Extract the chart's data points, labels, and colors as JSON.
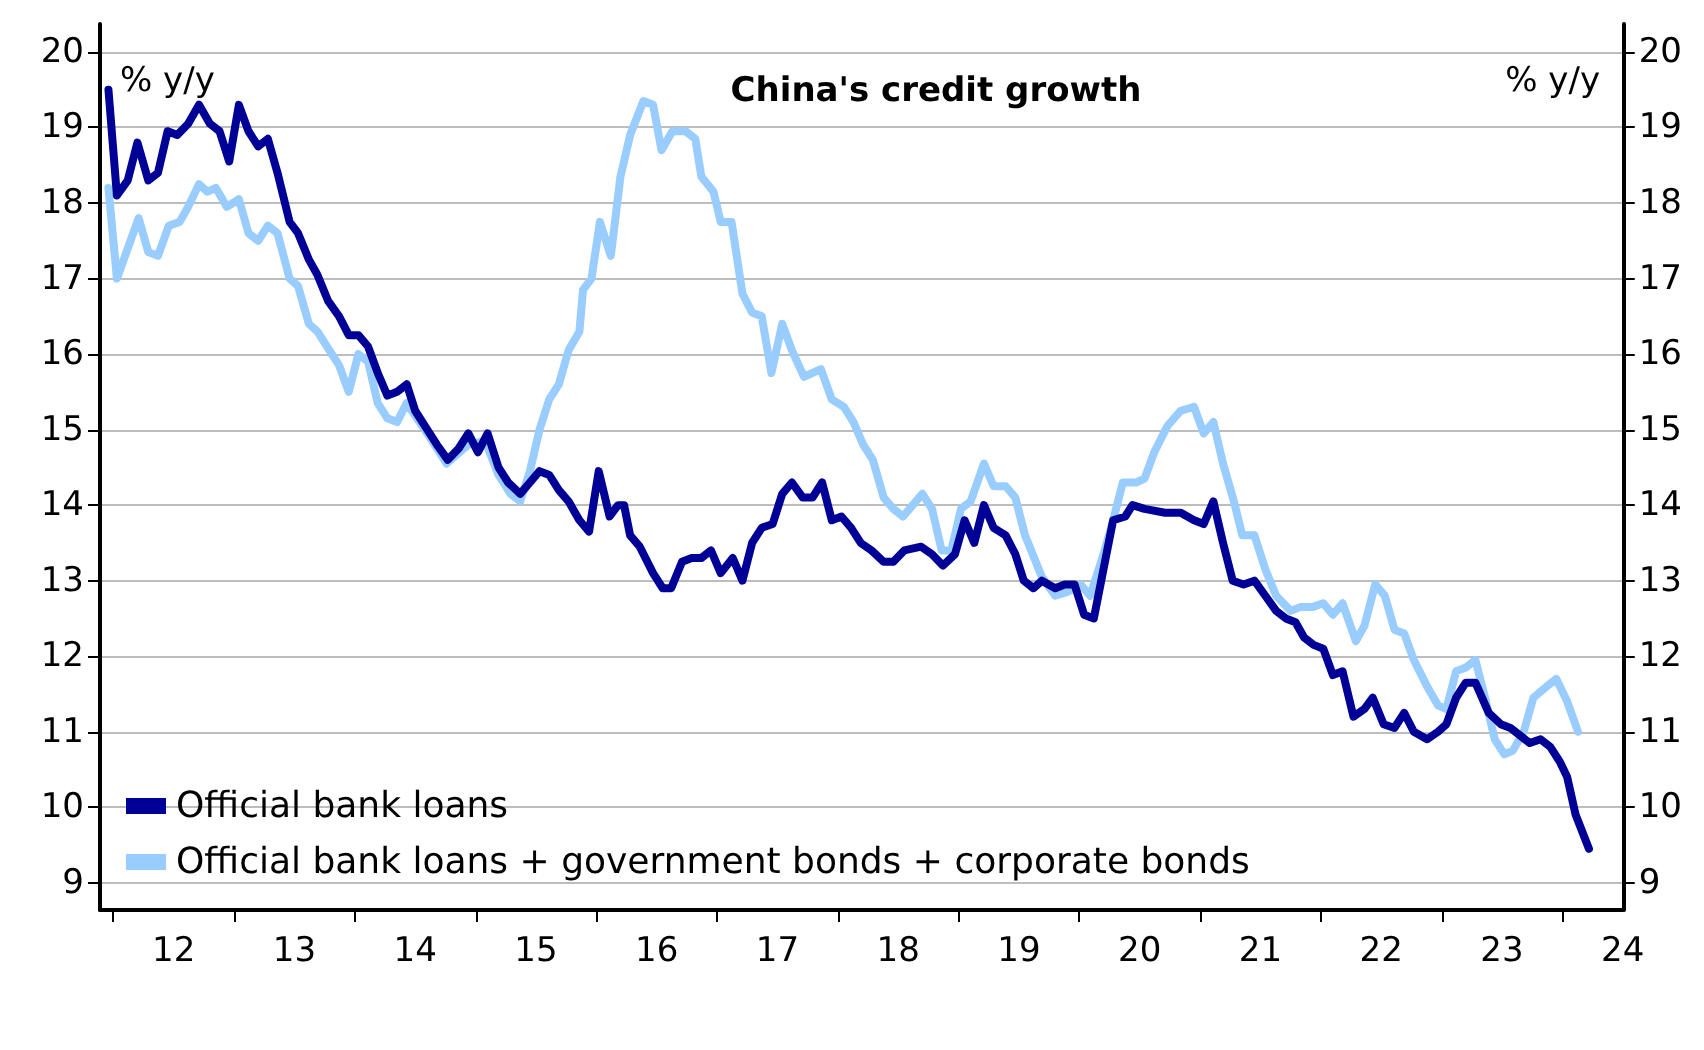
{
  "chart_data": {
    "type": "line",
    "title": "China's credit growth",
    "ylabel": "% y/y",
    "y2label": "% y/y",
    "xlim": [
      11.39,
      24.0
    ],
    "xticks": [
      12,
      13,
      14,
      15,
      16,
      17,
      18,
      19,
      20,
      21,
      22,
      23,
      24,
      {
        "value": 11.5,
        "label": null
      },
      {
        "value": 12.5,
        "label": null
      },
      {
        "value": 13.5,
        "label": null
      },
      {
        "value": 14.5,
        "label": null
      },
      {
        "value": 15.5,
        "label": null
      },
      {
        "value": 16.5,
        "label": null
      },
      {
        "value": 17.5,
        "label": null
      },
      {
        "value": 18.5,
        "label": null
      },
      {
        "value": 19.5,
        "label": null
      },
      {
        "value": 20.5,
        "label": null
      },
      {
        "value": 21.5,
        "label": null
      },
      {
        "value": 22.5,
        "label": null
      },
      {
        "value": 23.5,
        "label": null
      }
    ],
    "ylim": [
      8.64,
      20.37
    ],
    "yticks": [
      9,
      10,
      11,
      12,
      13,
      14,
      15,
      16,
      17,
      18,
      19,
      20
    ],
    "y2lim": [
      8.64,
      20.37
    ],
    "y2ticks": [
      9,
      10,
      11,
      12,
      13,
      14,
      15,
      16,
      17,
      18,
      19,
      20
    ],
    "grid": "y",
    "legend": "bottom left",
    "marker": "none",
    "line_style": "solid",
    "series": [
      {
        "name": "Official bank loans",
        "color": "#000096",
        "x": [
          11.46,
          11.53,
          11.62,
          11.7,
          11.79,
          11.87,
          11.95,
          12.03,
          12.12,
          12.21,
          12.3,
          12.38,
          12.46,
          12.54,
          12.62,
          12.7,
          12.78,
          12.86,
          12.96,
          13.03,
          13.12,
          13.19,
          13.28,
          13.37,
          13.45,
          13.53,
          13.61,
          13.69,
          13.77,
          13.85,
          13.93,
          14.0,
          14.1,
          14.18,
          14.27,
          14.36,
          14.44,
          14.52,
          14.6,
          14.69,
          14.77,
          14.87,
          14.95,
          15.03,
          15.11,
          15.19,
          15.27,
          15.36,
          15.44,
          15.52,
          15.61,
          15.68,
          15.73,
          15.78,
          15.86,
          15.97,
          16.05,
          16.12,
          16.21,
          16.29,
          16.37,
          16.45,
          16.53,
          16.63,
          16.71,
          16.79,
          16.87,
          16.96,
          17.04,
          17.12,
          17.21,
          17.29,
          17.37,
          17.45,
          17.53,
          17.61,
          17.69,
          17.78,
          17.88,
          17.96,
          18.05,
          18.19,
          18.28,
          18.37,
          18.47,
          18.55,
          18.63,
          18.71,
          18.79,
          18.89,
          18.97,
          19.04,
          19.12,
          19.19,
          19.3,
          19.38,
          19.46,
          19.54,
          19.62,
          19.7,
          19.78,
          19.88,
          19.94,
          20.04,
          20.21,
          20.34,
          20.45,
          20.53,
          20.61,
          20.69,
          20.77,
          20.86,
          20.95,
          21.04,
          21.13,
          21.21,
          21.29,
          21.36,
          21.44,
          21.52,
          21.6,
          21.68,
          21.77,
          21.86,
          21.93,
          22.02,
          22.11,
          22.19,
          22.27,
          22.38,
          22.47,
          22.54,
          22.62,
          22.7,
          22.78,
          22.89,
          22.99,
          23.07,
          23.15,
          23.23,
          23.32,
          23.4,
          23.48,
          23.54,
          23.61,
          23.72
        ],
        "values": [
          19.5,
          18.1,
          18.3,
          18.8,
          18.3,
          18.4,
          18.95,
          18.9,
          19.05,
          19.3,
          19.05,
          18.95,
          18.55,
          19.3,
          18.95,
          18.75,
          18.85,
          18.4,
          17.75,
          17.6,
          17.25,
          17.05,
          16.7,
          16.5,
          16.25,
          16.25,
          16.1,
          15.75,
          15.45,
          15.5,
          15.6,
          15.25,
          15.0,
          14.8,
          14.6,
          14.75,
          14.95,
          14.7,
          14.95,
          14.5,
          14.3,
          14.15,
          14.3,
          14.45,
          14.4,
          14.2,
          14.05,
          13.8,
          13.65,
          14.45,
          13.85,
          14.0,
          14.0,
          13.6,
          13.45,
          13.1,
          12.9,
          12.9,
          13.25,
          13.3,
          13.3,
          13.4,
          13.1,
          13.3,
          13.0,
          13.5,
          13.7,
          13.75,
          14.15,
          14.3,
          14.1,
          14.1,
          14.3,
          13.8,
          13.85,
          13.7,
          13.5,
          13.4,
          13.25,
          13.25,
          13.4,
          13.45,
          13.35,
          13.2,
          13.35,
          13.8,
          13.5,
          14.0,
          13.7,
          13.6,
          13.35,
          13.0,
          12.9,
          13.0,
          12.9,
          12.95,
          12.95,
          12.55,
          12.5,
          13.15,
          13.8,
          13.85,
          14.0,
          13.95,
          13.9,
          13.9,
          13.8,
          13.75,
          14.05,
          13.5,
          13.0,
          12.95,
          13.0,
          12.8,
          12.6,
          12.5,
          12.45,
          12.25,
          12.15,
          12.1,
          11.75,
          11.8,
          11.2,
          11.3,
          11.45,
          11.1,
          11.05,
          11.25,
          11.0,
          10.9,
          11.0,
          11.1,
          11.45,
          11.65,
          11.65,
          11.25,
          11.1,
          11.05,
          10.95,
          10.85,
          10.9,
          10.8,
          10.6,
          10.4,
          9.9,
          9.45
        ]
      },
      {
        "name": "Official bank loans + government bonds + corporate bonds",
        "color": "#99ccff",
        "x": [
          11.46,
          11.53,
          11.62,
          11.71,
          11.79,
          11.87,
          11.96,
          12.05,
          12.12,
          12.21,
          12.28,
          12.35,
          12.44,
          12.54,
          12.62,
          12.7,
          12.78,
          12.86,
          12.96,
          13.03,
          13.12,
          13.19,
          13.29,
          13.37,
          13.45,
          13.53,
          13.61,
          13.69,
          13.77,
          13.85,
          13.93,
          14.1,
          14.26,
          14.44,
          14.58,
          14.69,
          14.79,
          14.87,
          14.95,
          15.03,
          15.11,
          15.19,
          15.27,
          15.36,
          15.39,
          15.46,
          15.53,
          15.62,
          15.7,
          15.78,
          15.89,
          15.97,
          16.04,
          16.13,
          16.24,
          16.32,
          16.37,
          16.47,
          16.53,
          16.62,
          16.71,
          16.79,
          16.87,
          16.95,
          17.04,
          17.12,
          17.22,
          17.36,
          17.45,
          17.55,
          17.63,
          17.71,
          17.79,
          17.88,
          17.96,
          18.04,
          18.12,
          18.2,
          18.28,
          18.36,
          18.44,
          18.52,
          18.6,
          18.71,
          18.79,
          18.89,
          18.97,
          19.05,
          19.19,
          19.3,
          19.4,
          19.51,
          19.59,
          19.7,
          19.78,
          19.86,
          19.97,
          20.04,
          20.12,
          20.23,
          20.34,
          20.45,
          20.53,
          20.61,
          20.69,
          20.78,
          20.85,
          20.95,
          21.04,
          21.13,
          21.25,
          21.33,
          21.43,
          21.52,
          21.6,
          21.68,
          21.79,
          21.86,
          21.95,
          22.03,
          22.11,
          22.19,
          22.27,
          22.38,
          22.47,
          22.54,
          22.62,
          22.7,
          22.78,
          22.86,
          22.94,
          23.02,
          23.09,
          23.18,
          23.26,
          23.37,
          23.45,
          23.54,
          23.63
        ],
        "values": [
          18.2,
          17.0,
          17.4,
          17.8,
          17.35,
          17.3,
          17.7,
          17.75,
          17.95,
          18.25,
          18.15,
          18.2,
          17.95,
          18.05,
          17.6,
          17.5,
          17.7,
          17.6,
          17.0,
          16.9,
          16.4,
          16.3,
          16.05,
          15.85,
          15.5,
          16.0,
          15.9,
          15.35,
          15.15,
          15.1,
          15.35,
          14.95,
          14.55,
          14.8,
          14.85,
          14.4,
          14.15,
          14.05,
          14.45,
          15.0,
          15.4,
          15.6,
          16.05,
          16.3,
          16.85,
          17.0,
          17.75,
          17.3,
          18.35,
          18.9,
          19.35,
          19.3,
          18.7,
          18.95,
          18.95,
          18.85,
          18.35,
          18.15,
          17.75,
          17.75,
          16.8,
          16.55,
          16.5,
          15.75,
          16.4,
          16.05,
          15.7,
          15.8,
          15.4,
          15.3,
          15.1,
          14.8,
          14.6,
          14.1,
          13.95,
          13.85,
          14.0,
          14.15,
          13.95,
          13.4,
          13.4,
          13.95,
          14.05,
          14.55,
          14.25,
          14.25,
          14.1,
          13.6,
          13.05,
          12.8,
          12.85,
          12.95,
          12.8,
          13.35,
          13.8,
          14.3,
          14.3,
          14.35,
          14.7,
          15.05,
          15.25,
          15.3,
          14.95,
          15.1,
          14.55,
          14.05,
          13.6,
          13.6,
          13.15,
          12.8,
          12.6,
          12.65,
          12.65,
          12.7,
          12.55,
          12.7,
          12.2,
          12.4,
          12.95,
          12.8,
          12.35,
          12.3,
          11.95,
          11.6,
          11.35,
          11.3,
          11.8,
          11.85,
          11.95,
          11.45,
          10.9,
          10.7,
          10.75,
          11.0,
          11.45,
          11.6,
          11.7,
          11.4,
          11.0
        ]
      }
    ]
  }
}
